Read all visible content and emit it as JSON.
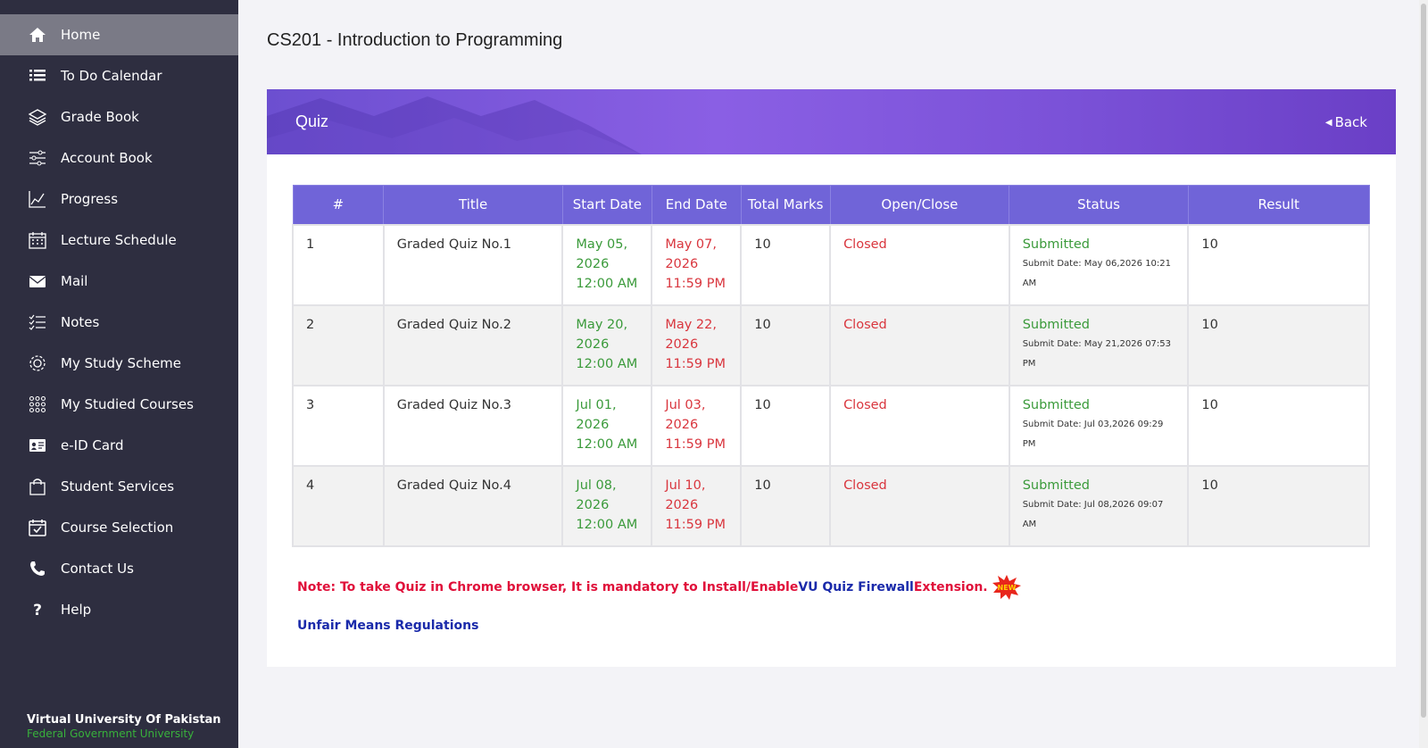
{
  "sidebar": {
    "items": [
      {
        "label": "Home",
        "icon": "home-icon",
        "active": true
      },
      {
        "label": "To Do Calendar",
        "icon": "list-icon"
      },
      {
        "label": "Grade Book",
        "icon": "layers-icon"
      },
      {
        "label": "Account Book",
        "icon": "sliders-icon"
      },
      {
        "label": "Progress",
        "icon": "chart-icon"
      },
      {
        "label": "Lecture Schedule",
        "icon": "calendar-icon"
      },
      {
        "label": "Mail",
        "icon": "mail-icon"
      },
      {
        "label": "Notes",
        "icon": "checklist-icon"
      },
      {
        "label": "My Study Scheme",
        "icon": "gear-icon"
      },
      {
        "label": "My Studied Courses",
        "icon": "grid-icon"
      },
      {
        "label": "e-ID Card",
        "icon": "id-card-icon"
      },
      {
        "label": "Student Services",
        "icon": "bag-icon"
      },
      {
        "label": "Course Selection",
        "icon": "calendar-check-icon"
      },
      {
        "label": "Contact Us",
        "icon": "phone-icon"
      },
      {
        "label": "Help",
        "icon": "question-icon"
      }
    ],
    "brand_title": "Virtual University Of Pakistan",
    "brand_subtitle": "Federal Government University"
  },
  "page_title": "CS201 - Introduction to Programming",
  "card": {
    "title": "Quiz",
    "back_label": "Back"
  },
  "table": {
    "headers": [
      "#",
      "Title",
      "Start Date",
      "End Date",
      "Total Marks",
      "Open/Close",
      "Status",
      "Result"
    ],
    "rows": [
      {
        "num": "1",
        "title": "Graded Quiz No.1",
        "start": [
          "May 05,",
          "2026",
          "12:00 AM"
        ],
        "end": [
          "May 07,",
          "2026",
          "11:59 PM"
        ],
        "marks": "10",
        "open_close": "Closed",
        "status": "Submitted",
        "submit_date": "Submit Date: May 06,2026 10:21 AM",
        "result": "10"
      },
      {
        "num": "2",
        "title": "Graded Quiz No.2",
        "start": [
          "May 20,",
          "2026",
          "12:00 AM"
        ],
        "end": [
          "May 22,",
          "2026",
          "11:59 PM"
        ],
        "marks": "10",
        "open_close": "Closed",
        "status": "Submitted",
        "submit_date": "Submit Date: May 21,2026 07:53 PM",
        "result": "10"
      },
      {
        "num": "3",
        "title": "Graded Quiz No.3",
        "start": [
          "Jul 01,",
          "2026",
          "12:00 AM"
        ],
        "end": [
          "Jul 03,",
          "2026",
          "11:59 PM"
        ],
        "marks": "10",
        "open_close": "Closed",
        "status": "Submitted",
        "submit_date": "Submit Date: Jul 03,2026 09:29 PM",
        "result": "10"
      },
      {
        "num": "4",
        "title": "Graded Quiz No.4",
        "start": [
          "Jul 08,",
          "2026",
          "12:00 AM"
        ],
        "end": [
          "Jul 10,",
          "2026",
          "11:59 PM"
        ],
        "marks": "10",
        "open_close": "Closed",
        "status": "Submitted",
        "submit_date": "Submit Date: Jul 08,2026 09:07 AM",
        "result": "10"
      }
    ]
  },
  "note": {
    "part1": "Note: To take Quiz in Chrome browser, It is mandatory to Install/Enable ",
    "part2": "VU Quiz Firewall",
    "part3": " Extension.",
    "badge": "NEW"
  },
  "unfair_link": "Unfair Means Regulations",
  "colors": {
    "sidebar_bg": "#2e2e40",
    "header_purple": "#7b52d8",
    "table_header": "#7064d8",
    "green": "#3a9a3a",
    "red": "#d9363e",
    "link_blue": "#1a2aaa"
  }
}
